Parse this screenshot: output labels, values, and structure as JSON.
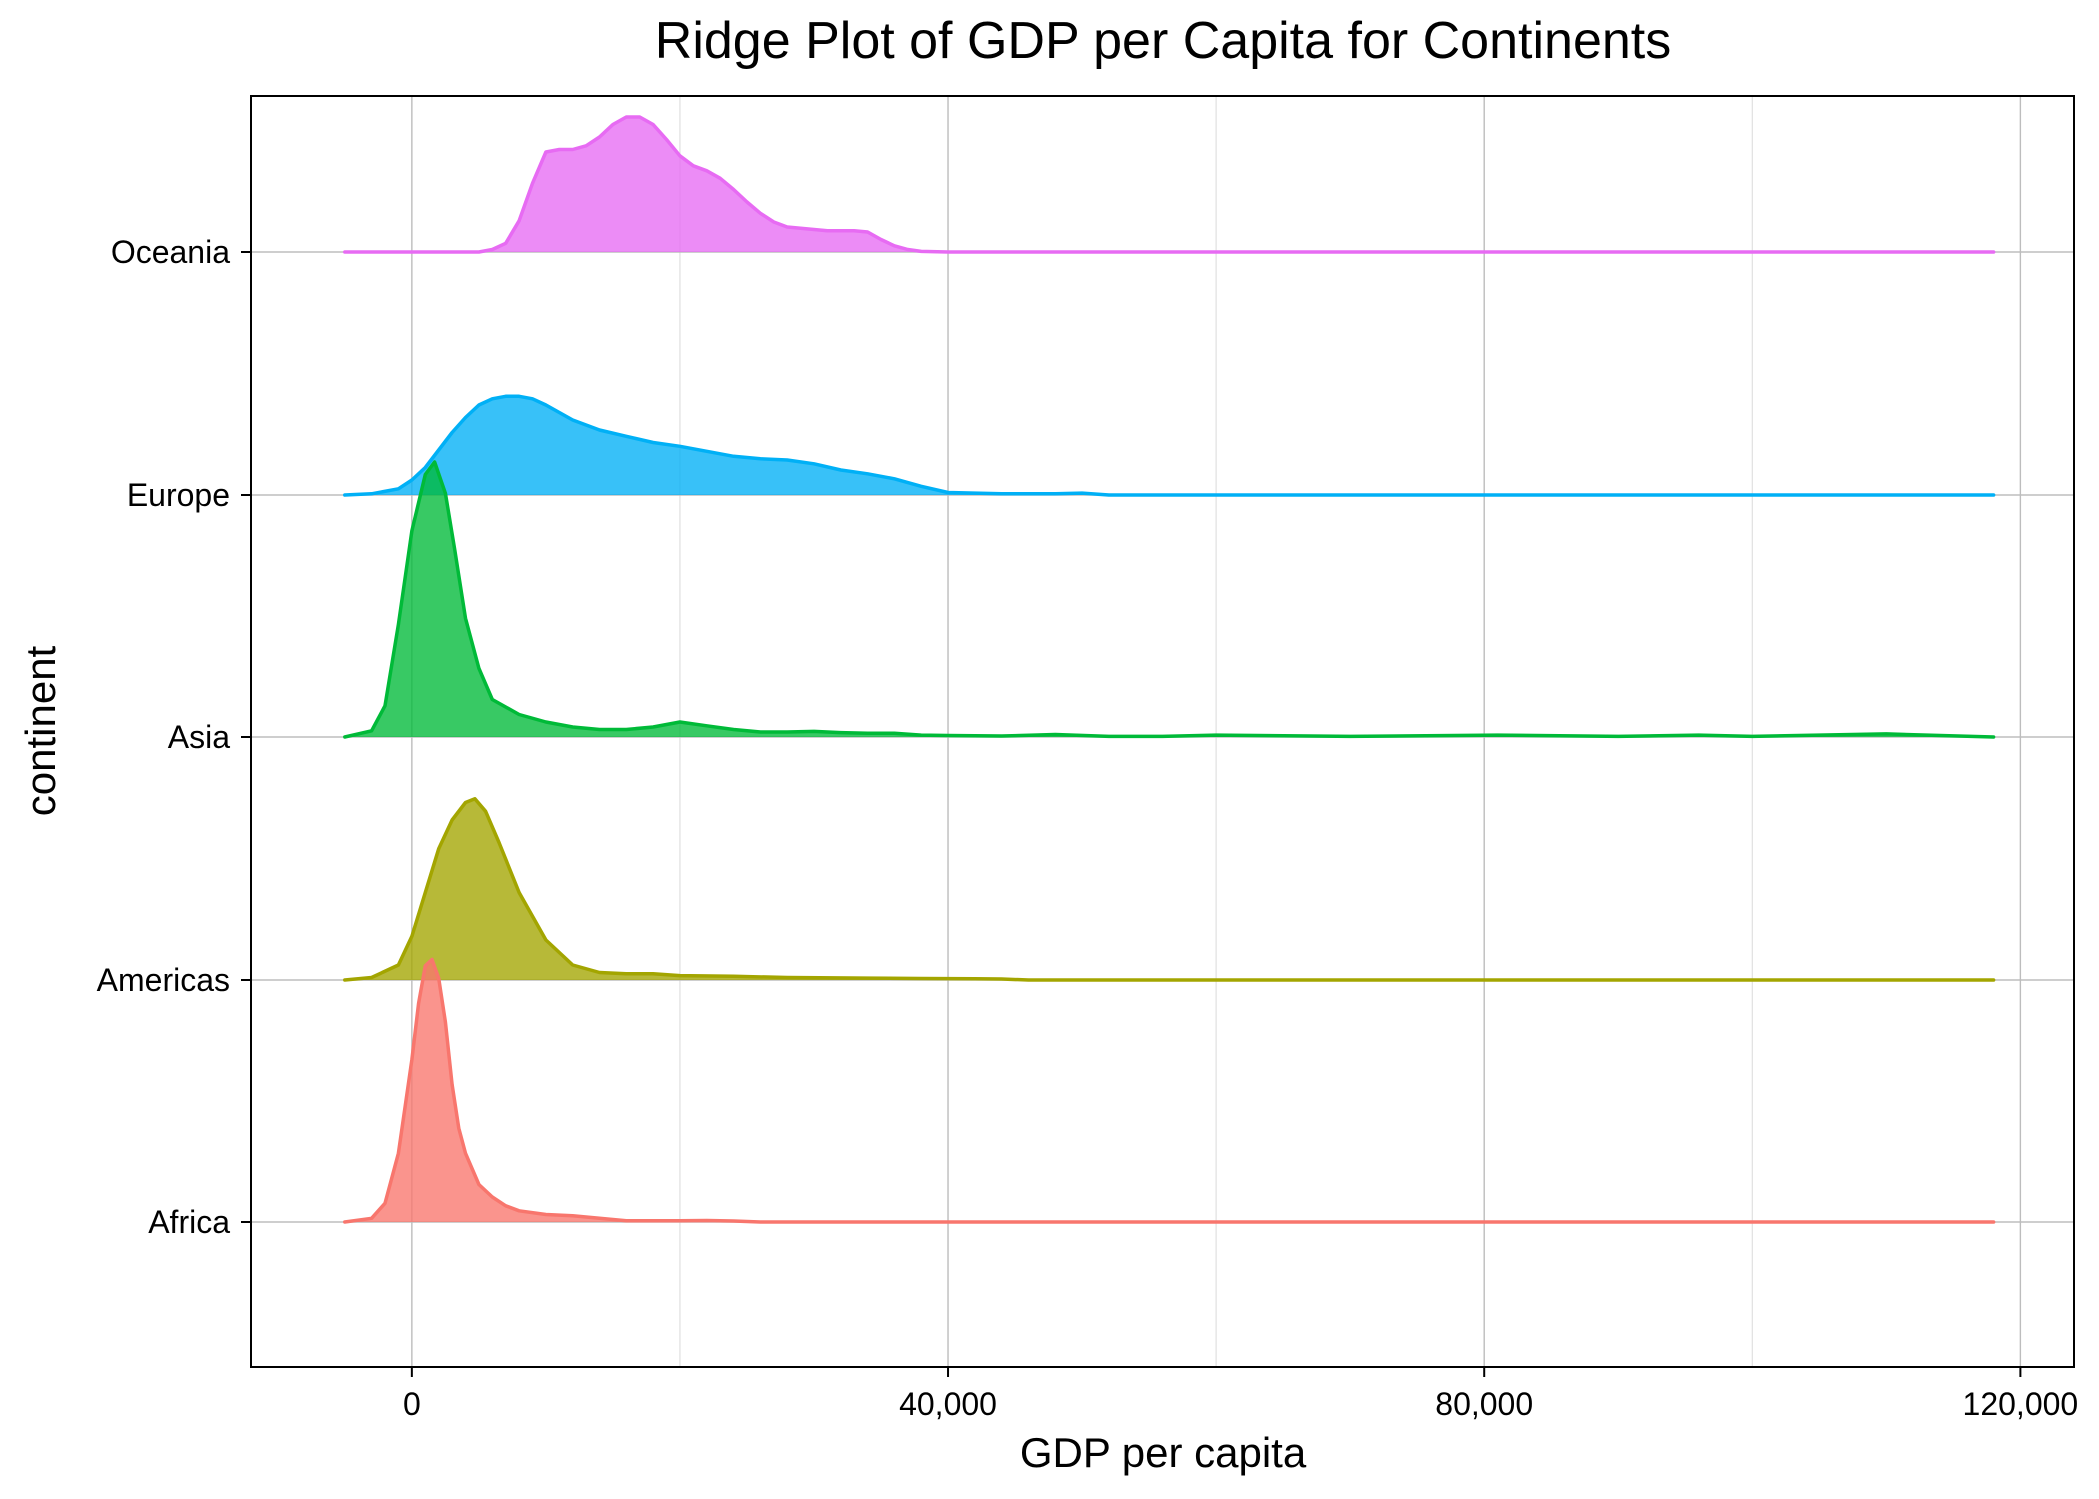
{
  "chart_data": {
    "type": "ridgeline",
    "title": "Ridge Plot of GDP per Capita for Continents",
    "xlabel": "GDP per capita",
    "ylabel": "continent",
    "xlim": [
      -12000,
      124000
    ],
    "x_ticks": [
      {
        "value": 0,
        "label": "0"
      },
      {
        "value": 40000,
        "label": "40,000"
      },
      {
        "value": 80000,
        "label": "80,000"
      },
      {
        "value": 120000,
        "label": "120,000"
      }
    ],
    "x_minor_ticks": [
      20000,
      60000,
      100000
    ],
    "grid": true,
    "legend": "none",
    "categories": [
      "Africa",
      "Americas",
      "Asia",
      "Europe",
      "Oceania"
    ],
    "series": [
      {
        "name": "Africa",
        "color": "#F8766D",
        "x": [
          -5000,
          -3000,
          -2000,
          -1000,
          0,
          500,
          1000,
          1500,
          2000,
          2500,
          3000,
          3500,
          4000,
          5000,
          6000,
          7000,
          8000,
          10000,
          12000,
          14000,
          16000,
          18000,
          20000,
          22000,
          24000,
          26000,
          30000,
          118000
        ],
        "y": [
          0,
          0.03,
          0.15,
          0.55,
          1.3,
          1.75,
          2.05,
          2.1,
          1.95,
          1.6,
          1.1,
          0.75,
          0.55,
          0.3,
          0.2,
          0.13,
          0.09,
          0.06,
          0.05,
          0.03,
          0.01,
          0.01,
          0.01,
          0.012,
          0.008,
          0,
          0,
          0
        ]
      },
      {
        "name": "Americas",
        "color": "#A3A500",
        "x": [
          -5000,
          -3000,
          -1000,
          0,
          1000,
          2000,
          3000,
          4000,
          4700,
          5500,
          6500,
          8000,
          10000,
          12000,
          14000,
          16000,
          18000,
          20000,
          24000,
          28000,
          34000,
          38000,
          42000,
          44000,
          46000,
          118000
        ],
        "y": [
          0,
          0.02,
          0.12,
          0.35,
          0.7,
          1.05,
          1.28,
          1.42,
          1.45,
          1.35,
          1.1,
          0.7,
          0.32,
          0.12,
          0.06,
          0.05,
          0.05,
          0.035,
          0.03,
          0.02,
          0.015,
          0.012,
          0.01,
          0.008,
          0,
          0
        ]
      },
      {
        "name": "Asia",
        "color": "#00BA38",
        "x": [
          -5000,
          -3000,
          -2000,
          -1000,
          0,
          1000,
          1700,
          2500,
          3200,
          4000,
          5000,
          6000,
          8000,
          10000,
          12000,
          14000,
          16000,
          18000,
          20000,
          22000,
          24000,
          26000,
          28000,
          30000,
          32000,
          34000,
          36000,
          38000,
          40000,
          44000,
          48000,
          52000,
          56000,
          60000,
          70000,
          81000,
          90000,
          96000,
          100000,
          110000,
          118000
        ],
        "y": [
          0,
          0.05,
          0.25,
          0.9,
          1.65,
          2.1,
          2.2,
          1.95,
          1.5,
          0.95,
          0.55,
          0.3,
          0.18,
          0.12,
          0.08,
          0.06,
          0.06,
          0.08,
          0.12,
          0.09,
          0.06,
          0.04,
          0.04,
          0.045,
          0.035,
          0.03,
          0.03,
          0.015,
          0.012,
          0.008,
          0.02,
          0.005,
          0.005,
          0.015,
          0.005,
          0.015,
          0.005,
          0.015,
          0.005,
          0.025,
          0
        ]
      },
      {
        "name": "Europe",
        "color": "#00B0F6",
        "x": [
          -5000,
          -3000,
          -1000,
          0,
          1000,
          2000,
          3000,
          4000,
          5000,
          6000,
          7000,
          8000,
          9000,
          10000,
          11000,
          12000,
          14000,
          16000,
          18000,
          20000,
          22000,
          24000,
          26000,
          28000,
          30000,
          32000,
          34000,
          36000,
          38000,
          40000,
          44000,
          48000,
          50000,
          52000,
          118000
        ],
        "y": [
          0,
          0.01,
          0.05,
          0.12,
          0.22,
          0.36,
          0.5,
          0.62,
          0.72,
          0.77,
          0.79,
          0.79,
          0.77,
          0.72,
          0.66,
          0.6,
          0.52,
          0.47,
          0.42,
          0.39,
          0.35,
          0.31,
          0.29,
          0.28,
          0.25,
          0.2,
          0.17,
          0.13,
          0.07,
          0.02,
          0.01,
          0.01,
          0.015,
          0,
          0
        ]
      },
      {
        "name": "Oceania",
        "color": "#E76BF3",
        "x": [
          -5000,
          5000,
          6000,
          7000,
          8000,
          9000,
          10000,
          11000,
          12000,
          13000,
          14000,
          15000,
          16000,
          17000,
          18000,
          19000,
          20000,
          21000,
          22000,
          23000,
          24000,
          25000,
          26000,
          27000,
          28000,
          29000,
          30000,
          31000,
          32000,
          33000,
          34000,
          35000,
          36000,
          37000,
          38000,
          40000,
          118000
        ],
        "y": [
          0,
          0,
          0.02,
          0.07,
          0.25,
          0.55,
          0.8,
          0.82,
          0.82,
          0.85,
          0.92,
          1.02,
          1.08,
          1.08,
          1.02,
          0.9,
          0.77,
          0.69,
          0.65,
          0.59,
          0.5,
          0.4,
          0.31,
          0.24,
          0.2,
          0.19,
          0.18,
          0.17,
          0.17,
          0.17,
          0.16,
          0.1,
          0.05,
          0.02,
          0.005,
          0,
          0
        ]
      }
    ]
  }
}
